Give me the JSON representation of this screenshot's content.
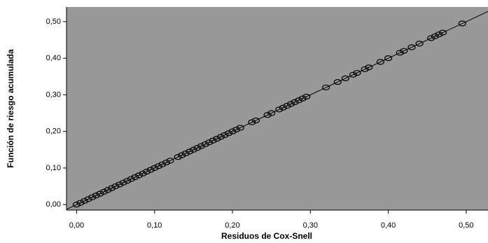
{
  "chart_data": {
    "type": "scatter",
    "x_label": "Residuos de Cox-Snell",
    "y_label": "Función de riesgo acumulada",
    "xlim": [
      -0.013,
      0.528
    ],
    "ylim": [
      -0.015,
      0.54
    ],
    "xticks": [
      {
        "value": 0,
        "label": "0,00"
      },
      {
        "value": 0.1,
        "label": "0,10"
      },
      {
        "value": 0.2,
        "label": "0,20"
      },
      {
        "value": 0.3,
        "label": "0,30"
      },
      {
        "value": 0.4,
        "label": "0,40"
      },
      {
        "value": 0.5,
        "label": "0,50"
      }
    ],
    "yticks": [
      {
        "value": 0,
        "label": "0,00"
      },
      {
        "value": 0.1,
        "label": "0,10"
      },
      {
        "value": 0.2,
        "label": "0,20"
      },
      {
        "value": 0.3,
        "label": "0,30"
      },
      {
        "value": 0.4,
        "label": "0,40"
      },
      {
        "value": 0.5,
        "label": "0,50"
      }
    ],
    "background": "#999999",
    "color": "#000000",
    "reference_line": true,
    "x": [
      0,
      0.005,
      0.01,
      0.015,
      0.02,
      0.025,
      0.03,
      0.035,
      0.04,
      0.045,
      0.05,
      0.055,
      0.06,
      0.065,
      0.07,
      0.075,
      0.08,
      0.085,
      0.09,
      0.095,
      0.1,
      0.105,
      0.11,
      0.115,
      0.12,
      0.13,
      0.135,
      0.14,
      0.145,
      0.15,
      0.155,
      0.16,
      0.165,
      0.17,
      0.175,
      0.18,
      0.185,
      0.19,
      0.195,
      0.2,
      0.205,
      0.21,
      0.225,
      0.23,
      0.245,
      0.25,
      0.26,
      0.265,
      0.27,
      0.275,
      0.28,
      0.285,
      0.29,
      0.295,
      0.32,
      0.335,
      0.345,
      0.355,
      0.36,
      0.37,
      0.375,
      0.39,
      0.4,
      0.415,
      0.42,
      0.43,
      0.44,
      0.455,
      0.46,
      0.465,
      0.47,
      0.495
    ],
    "y": [
      0,
      0.005,
      0.01,
      0.015,
      0.02,
      0.025,
      0.03,
      0.035,
      0.04,
      0.045,
      0.05,
      0.055,
      0.06,
      0.065,
      0.07,
      0.075,
      0.08,
      0.085,
      0.09,
      0.095,
      0.1,
      0.105,
      0.11,
      0.115,
      0.12,
      0.13,
      0.135,
      0.14,
      0.145,
      0.15,
      0.155,
      0.16,
      0.165,
      0.17,
      0.175,
      0.18,
      0.185,
      0.19,
      0.195,
      0.2,
      0.205,
      0.21,
      0.225,
      0.23,
      0.245,
      0.25,
      0.26,
      0.265,
      0.27,
      0.275,
      0.28,
      0.285,
      0.29,
      0.295,
      0.32,
      0.335,
      0.345,
      0.355,
      0.36,
      0.37,
      0.375,
      0.39,
      0.4,
      0.415,
      0.42,
      0.43,
      0.44,
      0.455,
      0.46,
      0.465,
      0.47,
      0.495
    ]
  }
}
